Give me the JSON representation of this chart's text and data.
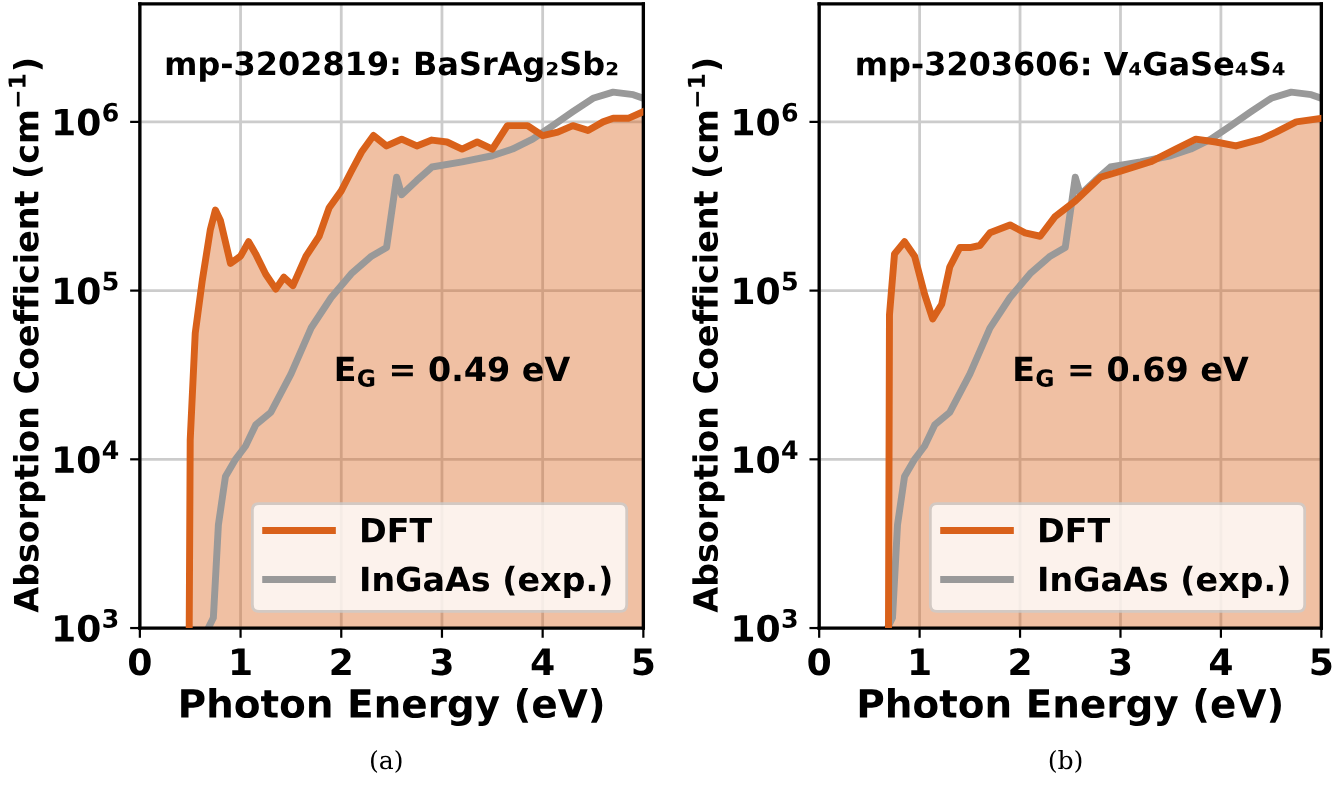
{
  "chart_data": [
    {
      "type": "line",
      "title": "mp-3202819: BaSrAg₂Sb₂",
      "xlabel": "Photon Energy (eV)",
      "ylabel": "Absorption Coefficient (cm$^{−1}$)",
      "xlim": [
        0,
        5
      ],
      "xticks": [
        0,
        1,
        2,
        3,
        4,
        5
      ],
      "ylim": [
        1000,
        5000000
      ],
      "yticks": [
        {
          "value": 1000,
          "label": "10$^{3}$"
        },
        {
          "value": 10000,
          "label": "10$^{4}$"
        },
        {
          "value": 100000,
          "label": "10$^{5}$"
        },
        {
          "value": 1000000,
          "label": "10$^{6}$"
        }
      ],
      "log": "y",
      "grid": true,
      "legend": "bottom right",
      "annotations": [
        "E$_{G}$ = 0.49 eV",
        "(a)"
      ],
      "series": [
        {
          "name": "DFT",
          "type": "area",
          "color": "#d9611a",
          "x": [
            0.49,
            0.5,
            0.55,
            0.62,
            0.7,
            0.75,
            0.8,
            0.9,
            1.0,
            1.08,
            1.15,
            1.25,
            1.35,
            1.43,
            1.52,
            1.65,
            1.78,
            1.88,
            2.0,
            2.1,
            2.2,
            2.32,
            2.45,
            2.6,
            2.75,
            2.9,
            3.05,
            3.2,
            3.35,
            3.5,
            3.65,
            3.85,
            4.0,
            4.15,
            4.3,
            4.45,
            4.6,
            4.7,
            4.85,
            5.0
          ],
          "values": [
            1000,
            13000,
            56000,
            115000,
            230000,
            300000,
            260000,
            145000,
            160000,
            195000,
            165000,
            125000,
            102000,
            120000,
            107000,
            160000,
            210000,
            310000,
            390000,
            510000,
            660000,
            830000,
            720000,
            790000,
            720000,
            780000,
            760000,
            690000,
            760000,
            690000,
            950000,
            950000,
            830000,
            870000,
            950000,
            890000,
            1000000,
            1050000,
            1050000,
            1150000
          ]
        },
        {
          "name": "InGaAs (exp.)",
          "color": "#999999",
          "x": [
            0.68,
            0.73,
            0.78,
            0.85,
            0.95,
            1.05,
            1.15,
            1.3,
            1.5,
            1.7,
            1.9,
            2.1,
            2.3,
            2.45,
            2.55,
            2.6,
            2.75,
            2.9,
            3.2,
            3.5,
            3.7,
            3.9,
            4.1,
            4.3,
            4.5,
            4.7,
            4.9,
            5.0
          ],
          "values": [
            1000,
            1150,
            4100,
            7900,
            10000,
            12000,
            16000,
            19000,
            32000,
            60000,
            91000,
            126000,
            160000,
            180000,
            470000,
            370000,
            450000,
            540000,
            580000,
            630000,
            690000,
            790000,
            950000,
            1150000,
            1380000,
            1500000,
            1450000,
            1380000
          ]
        }
      ]
    },
    {
      "type": "line",
      "title": "mp-3203606: V₄GaSe₄S₄",
      "xlabel": "Photon Energy (eV)",
      "ylabel": "Absorption Coefficient (cm$^{−1}$)",
      "xlim": [
        0,
        5
      ],
      "xticks": [
        0,
        1,
        2,
        3,
        4,
        5
      ],
      "ylim": [
        1000,
        5000000
      ],
      "yticks": [
        {
          "value": 1000,
          "label": "10$^{3}$"
        },
        {
          "value": 10000,
          "label": "10$^{4}$"
        },
        {
          "value": 100000,
          "label": "10$^{5}$"
        },
        {
          "value": 1000000,
          "label": "10$^{6}$"
        }
      ],
      "log": "y",
      "grid": true,
      "legend": "bottom right",
      "annotations": [
        "E$_{G}$ = 0.69 eV",
        "(b)"
      ],
      "series": [
        {
          "name": "DFT",
          "type": "area",
          "color": "#d9611a",
          "x": [
            0.69,
            0.7,
            0.75,
            0.85,
            0.95,
            1.05,
            1.13,
            1.22,
            1.3,
            1.4,
            1.5,
            1.6,
            1.7,
            1.9,
            2.05,
            2.2,
            2.35,
            2.55,
            2.8,
            3.0,
            3.3,
            3.55,
            3.75,
            3.95,
            4.15,
            4.4,
            4.55,
            4.75,
            5.0
          ],
          "values": [
            1000,
            72000,
            165000,
            195000,
            160000,
            95000,
            68000,
            83000,
            138000,
            180000,
            180000,
            185000,
            220000,
            245000,
            220000,
            210000,
            275000,
            340000,
            470000,
            510000,
            580000,
            690000,
            790000,
            760000,
            720000,
            790000,
            870000,
            1000000,
            1050000
          ]
        },
        {
          "name": "InGaAs (exp.)",
          "color": "#999999",
          "x": [
            0.68,
            0.73,
            0.78,
            0.85,
            0.95,
            1.05,
            1.15,
            1.3,
            1.5,
            1.7,
            1.9,
            2.1,
            2.3,
            2.45,
            2.55,
            2.6,
            2.75,
            2.9,
            3.2,
            3.5,
            3.7,
            3.9,
            4.1,
            4.3,
            4.5,
            4.7,
            4.9,
            5.0
          ],
          "values": [
            1000,
            1150,
            4100,
            7900,
            10000,
            12000,
            16000,
            19000,
            32000,
            60000,
            91000,
            126000,
            160000,
            180000,
            470000,
            370000,
            450000,
            540000,
            580000,
            630000,
            690000,
            790000,
            950000,
            1150000,
            1380000,
            1500000,
            1450000,
            1380000
          ]
        }
      ]
    }
  ]
}
